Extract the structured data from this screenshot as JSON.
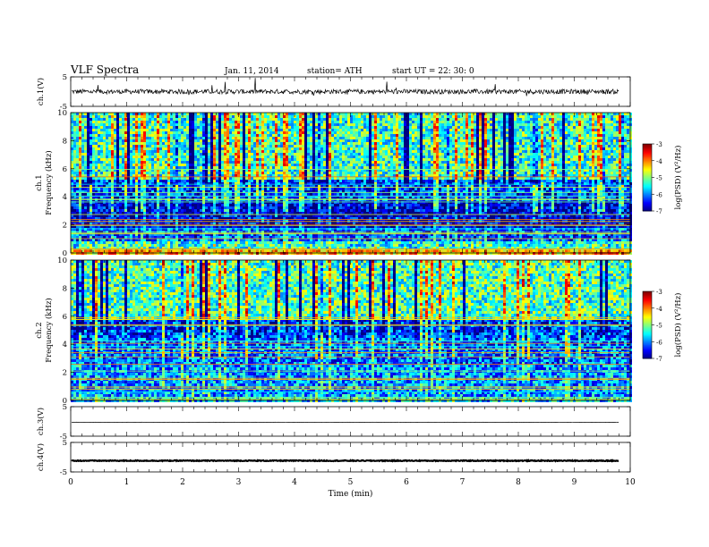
{
  "header": {
    "title": "VLF  Spectra",
    "date": "Jan. 11, 2014",
    "station": "station= ATH",
    "start": "start  UT  =   22: 30: 0"
  },
  "chart_data": [
    {
      "id": "ch1-wave",
      "type": "line",
      "ylabel": "ch.1(V)",
      "yticks": [
        "5",
        "-5"
      ],
      "ylim": [
        -5,
        5
      ],
      "xlim": [
        0,
        10
      ],
      "data_extent_min": 9.8,
      "baseline": 0,
      "noise_amplitude": 0.8,
      "spike_amplitude": 3
    },
    {
      "id": "ch1-spec",
      "type": "heatmap",
      "ylabel": "ch.1",
      "ylabel2": "Frequency  (kHz)",
      "yticks": [
        "10",
        "8",
        "6",
        "4",
        "2",
        "0"
      ],
      "ylim": [
        0,
        10
      ],
      "xlim": [
        0,
        10
      ],
      "colorbar": {
        "label": "log(PSD) (V²/Hz)",
        "ticks": [
          "-3",
          "-4",
          "-5",
          "-6",
          "-7"
        ],
        "range": [
          -7,
          -3
        ]
      },
      "bands_khz": [
        {
          "f": [
            0,
            0.3
          ],
          "level": -4.2
        },
        {
          "f": [
            0.3,
            1.0
          ],
          "level": -5.4
        },
        {
          "f": [
            1.0,
            1.8
          ],
          "level": -6.2
        },
        {
          "f": [
            1.8,
            3.8
          ],
          "level": -6.7
        },
        {
          "f": [
            3.8,
            5.4
          ],
          "level": -6.3
        },
        {
          "f": [
            5.4,
            10
          ],
          "level": -5.3
        }
      ]
    },
    {
      "id": "ch2-spec",
      "type": "heatmap",
      "ylabel": "ch.2",
      "ylabel2": "Frequency  (kHz)",
      "yticks": [
        "10",
        "8",
        "6",
        "4",
        "2",
        "0"
      ],
      "ylim": [
        0,
        10
      ],
      "xlim": [
        0,
        10
      ],
      "colorbar": {
        "label": "log(PSD) (V²/Hz)",
        "ticks": [
          "-3",
          "-4",
          "-5",
          "-6",
          "-7"
        ],
        "range": [
          -7,
          -3
        ]
      },
      "bands_khz": [
        {
          "f": [
            0,
            0.4
          ],
          "level": -5.6
        },
        {
          "f": [
            0.4,
            2.6
          ],
          "level": -5.9
        },
        {
          "f": [
            2.6,
            4.6
          ],
          "level": -6.1
        },
        {
          "f": [
            4.6,
            5.8
          ],
          "level": -6.3
        },
        {
          "f": [
            5.8,
            10
          ],
          "level": -5.2
        }
      ]
    },
    {
      "id": "ch3-wave",
      "type": "line",
      "ylabel": "ch.3(V)",
      "yticks": [
        "5",
        "-5"
      ],
      "ylim": [
        -5,
        5
      ],
      "xlim": [
        0,
        10
      ],
      "data_extent_min": 9.8,
      "baseline": -0.3,
      "noise_amplitude": 0.05
    },
    {
      "id": "ch4-wave",
      "type": "line",
      "ylabel": "ch.4(V)",
      "yticks": [
        "5",
        "-5"
      ],
      "ylim": [
        -5,
        5
      ],
      "xlim": [
        0,
        10
      ],
      "data_extent_min": 9.8,
      "baseline": -1.2,
      "noise_amplitude": 0.15
    }
  ],
  "xaxis": {
    "label": "Time  (min)",
    "ticks": [
      "0",
      "1",
      "2",
      "3",
      "4",
      "5",
      "6",
      "7",
      "8",
      "9",
      "10"
    ]
  }
}
